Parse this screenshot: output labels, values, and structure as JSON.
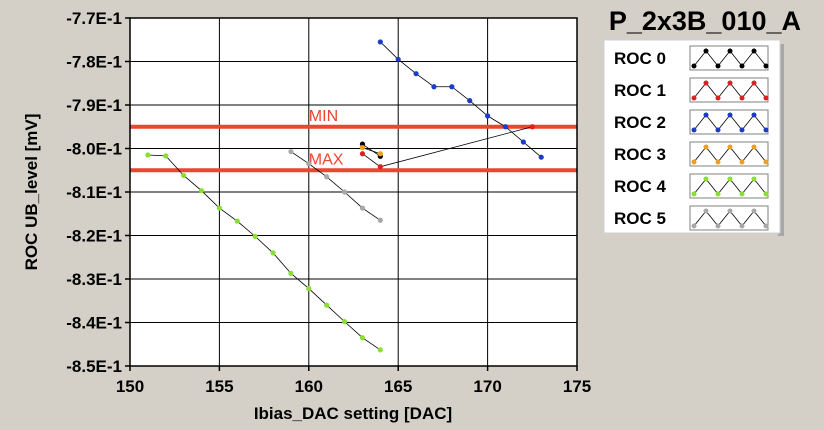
{
  "chart_data": {
    "type": "line",
    "title": "P_2x3B_010_A",
    "xlabel": "Ibias_DAC setting [DAC]",
    "ylabel": "ROC UB_level [mV]",
    "xlim": [
      150,
      175
    ],
    "ylim": [
      -0.85,
      -0.77
    ],
    "x_ticks": [
      150,
      155,
      160,
      165,
      170,
      175
    ],
    "x_tick_labels": [
      "150",
      "155",
      "160",
      "165",
      "170",
      "175"
    ],
    "y_ticks": [
      -0.77,
      -0.78,
      -0.79,
      -0.8,
      -0.81,
      -0.82,
      -0.83,
      -0.84,
      -0.85
    ],
    "y_tick_labels": [
      "-7.7E-1",
      "-7.8E-1",
      "-7.9E-1",
      "-8.0E-1",
      "-8.1E-1",
      "-8.2E-1",
      "-8.3E-1",
      "-8.4E-1",
      "-8.5E-1"
    ],
    "grid": true,
    "legend_position": "top-right",
    "limits": [
      {
        "label": "MIN",
        "y": -0.795,
        "color": "#ee4433"
      },
      {
        "label": "MAX",
        "y": -0.805,
        "color": "#ee4433"
      }
    ],
    "series": [
      {
        "name": "ROC 0",
        "color": "#000000",
        "x": [
          163,
          164
        ],
        "y": [
          -0.799,
          -0.8018
        ]
      },
      {
        "name": "ROC 1",
        "color": "#e02020",
        "x": [
          163,
          164,
          172.5
        ],
        "y": [
          -0.8012,
          -0.8042,
          -0.795
        ]
      },
      {
        "name": "ROC 2",
        "color": "#1a3cc8",
        "x": [
          164,
          165,
          166,
          167,
          168,
          169,
          170,
          171,
          172,
          173
        ],
        "y": [
          -0.7755,
          -0.7795,
          -0.7828,
          -0.7858,
          -0.7858,
          -0.789,
          -0.7925,
          -0.795,
          -0.7985,
          -0.802
        ]
      },
      {
        "name": "ROC 3",
        "color": "#f0a020",
        "x": [
          163,
          164
        ],
        "y": [
          -0.7998,
          -0.8012
        ]
      },
      {
        "name": "ROC 4",
        "color": "#88e030",
        "x": [
          151,
          152,
          153,
          154,
          155,
          156,
          157,
          158,
          159,
          160,
          161,
          162,
          163,
          164
        ],
        "y": [
          -0.8015,
          -0.8017,
          -0.8062,
          -0.8097,
          -0.8137,
          -0.8167,
          -0.8202,
          -0.824,
          -0.8287,
          -0.8322,
          -0.836,
          -0.8398,
          -0.8435,
          -0.8463
        ]
      },
      {
        "name": "ROC 5",
        "color": "#a8a8a8",
        "x": [
          159,
          160,
          161,
          162,
          163,
          164
        ],
        "y": [
          -0.8007,
          -0.8035,
          -0.8065,
          -0.81,
          -0.8137,
          -0.8165
        ]
      }
    ]
  }
}
